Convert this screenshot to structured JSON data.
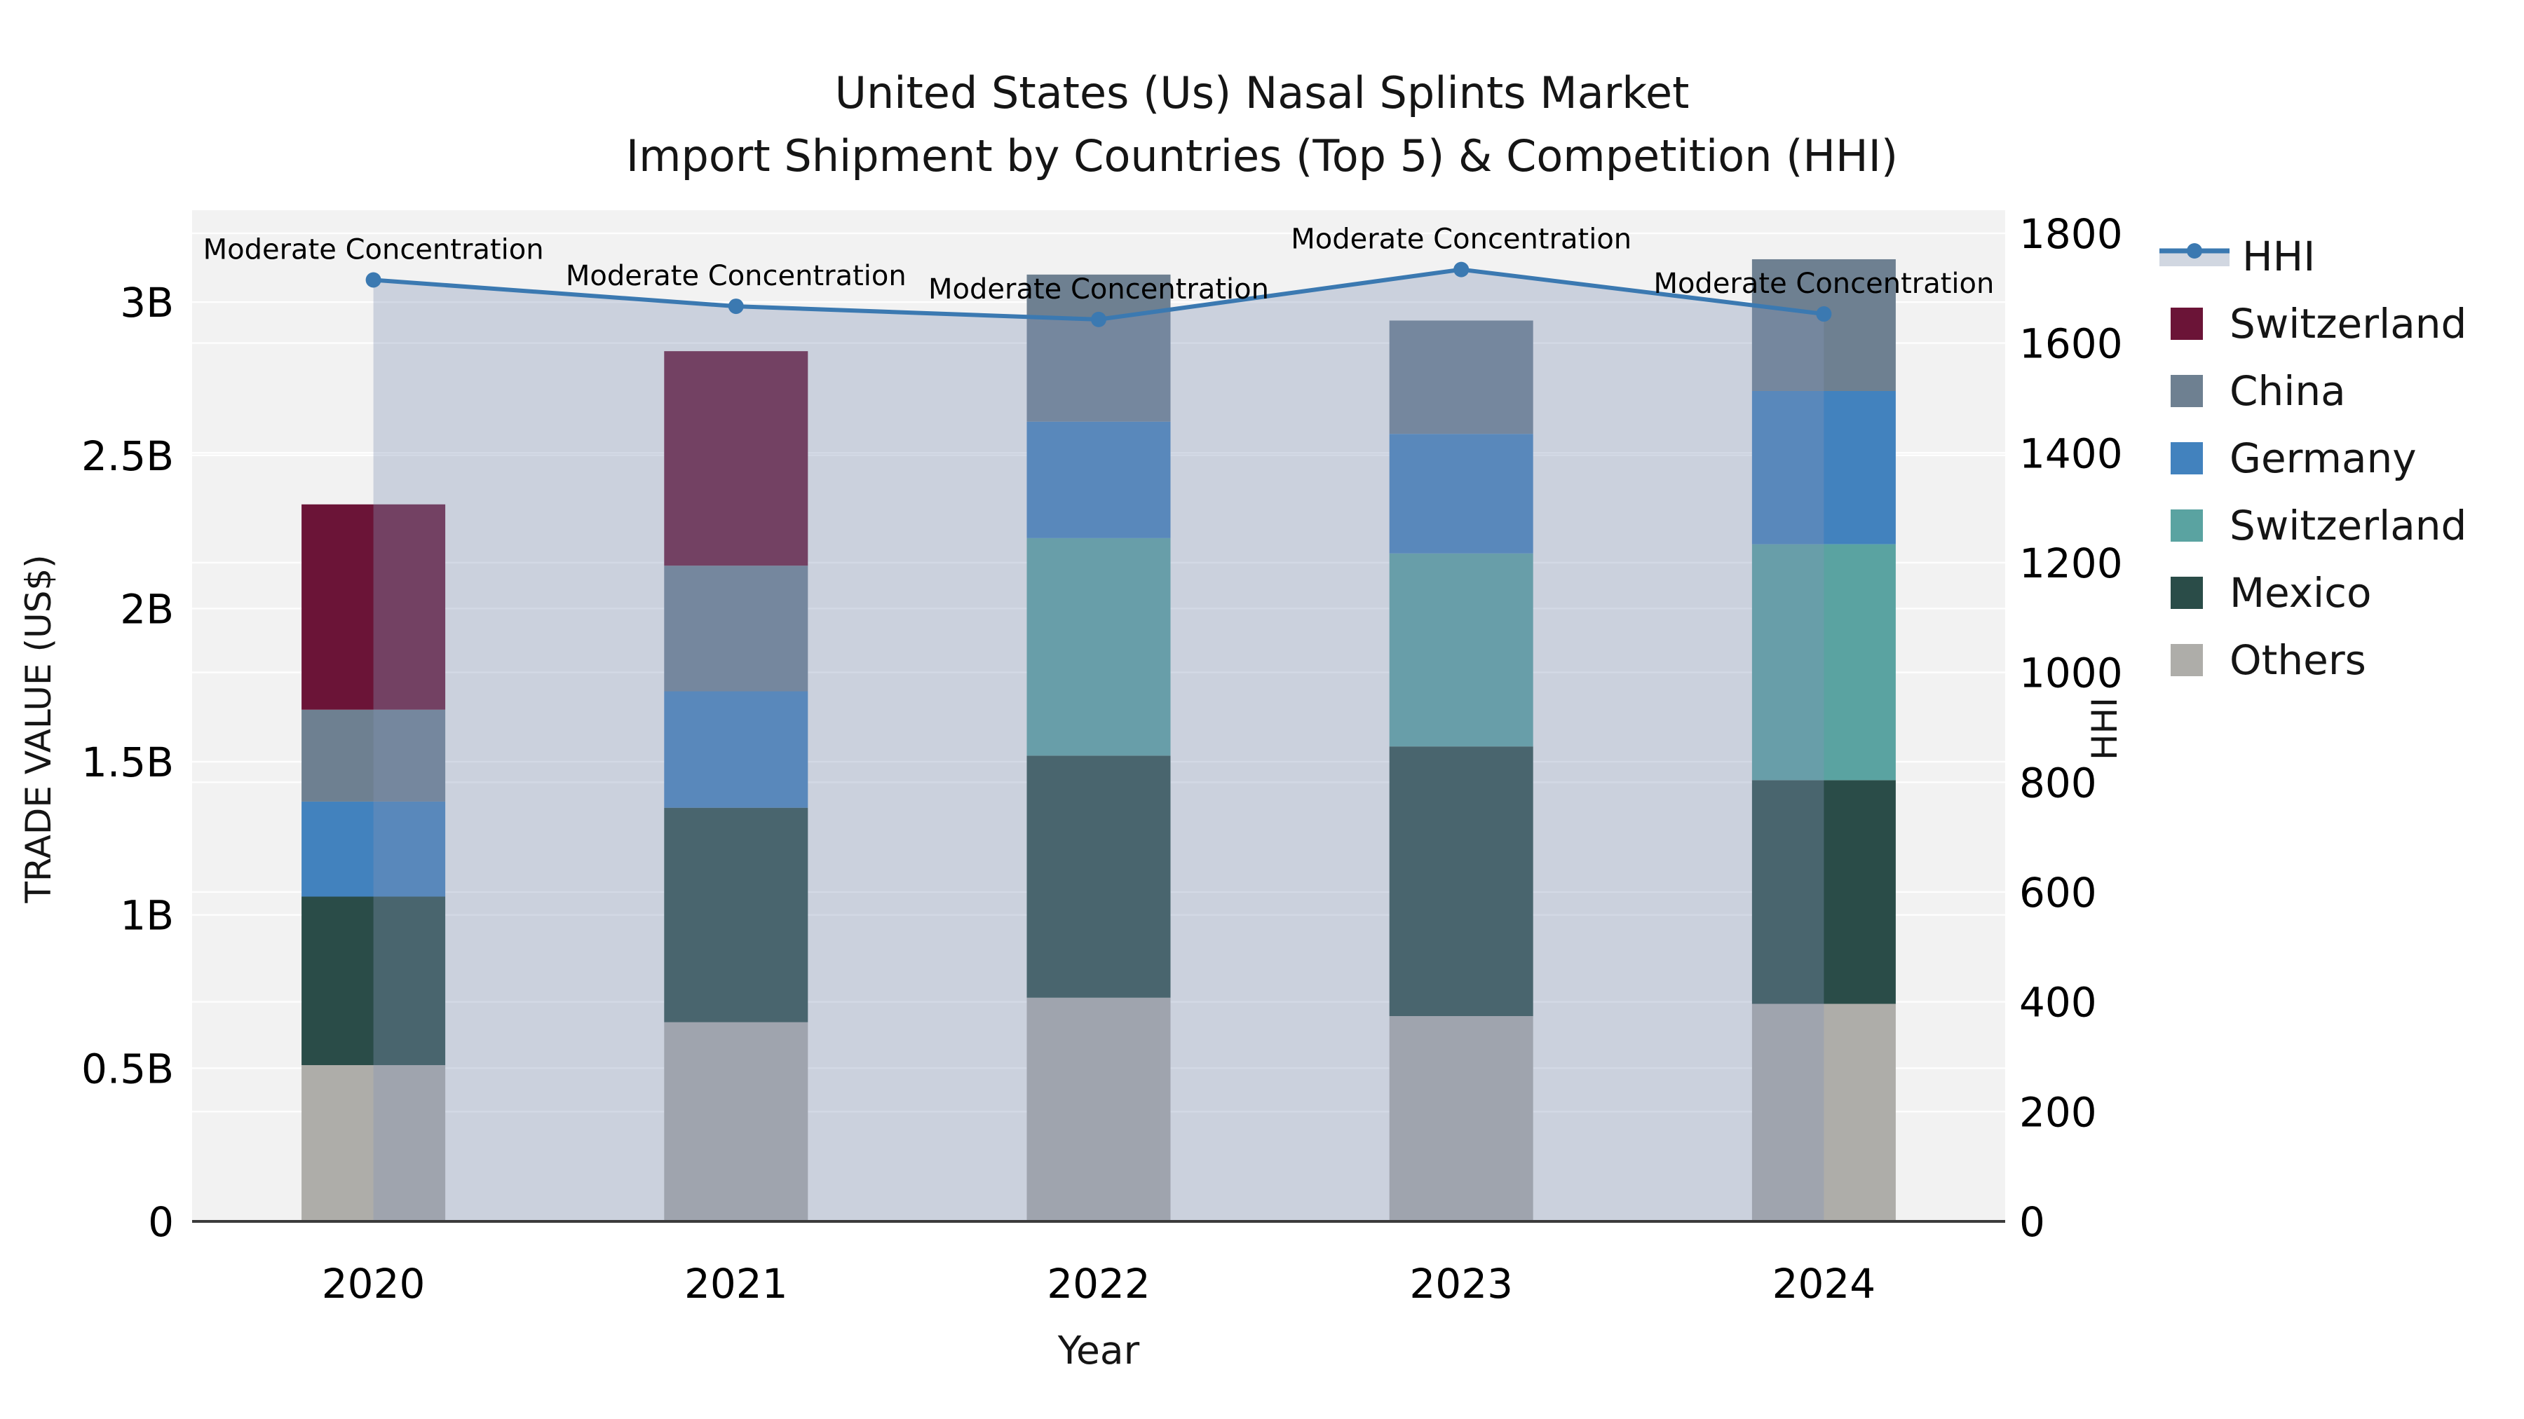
{
  "title": {
    "line1": "United States (Us) Nasal Splints Market",
    "line2": "Import Shipment by Countries (Top 5) & Competition (HHI)"
  },
  "axes": {
    "x": {
      "label": "Year",
      "categories": [
        "2020",
        "2021",
        "2022",
        "2023",
        "2024"
      ]
    },
    "y_left": {
      "label": "TRADE VALUE (US$)"
    },
    "y_right": {
      "label": "HHI"
    }
  },
  "legend": {
    "items": [
      {
        "label": "HHI",
        "type": "line",
        "color": "#3b79b1"
      },
      {
        "label": "Switzerland",
        "type": "swatch",
        "color": "#6b1437"
      },
      {
        "label": "China",
        "type": "swatch",
        "color": "#6e8091"
      },
      {
        "label": "Germany",
        "type": "swatch",
        "color": "#4282be"
      },
      {
        "label": "Switzerland",
        "type": "swatch",
        "color": "#5aa3a1"
      },
      {
        "label": "Mexico",
        "type": "swatch",
        "color": "#2a4c48"
      },
      {
        "label": "Others",
        "type": "swatch",
        "color": "#aeada9"
      }
    ]
  },
  "colors": {
    "plot_bg": "#f2f2f2",
    "gridline": "#ffffff",
    "axis_spine": "#3b3b3b",
    "hhi_line": "#3b79b1",
    "hhi_area_fill": "rgba(132,150,182,0.35)",
    "annotation_text": "#000000"
  },
  "chart_data": {
    "type": "bar",
    "subtype": "stacked-bars-with-hhi-line",
    "title": "United States (Us) Nasal Splints Market\nImport Shipment by Countries (Top 5) & Competition (HHI)",
    "xlabel": "Year",
    "ylabel_left": "TRADE VALUE (US$)",
    "ylabel_right": "HHI",
    "categories": [
      "2020",
      "2021",
      "2022",
      "2023",
      "2024"
    ],
    "bar_unit": "billions US$",
    "bar_series": [
      {
        "name": "Others",
        "color": "#aeada9",
        "values": [
          0.51,
          0.65,
          0.73,
          0.67,
          0.71
        ]
      },
      {
        "name": "Mexico",
        "color": "#2a4c48",
        "values": [
          0.55,
          0.7,
          0.79,
          0.88,
          0.73
        ]
      },
      {
        "name": "Switzerland",
        "color": "#5aa3a1",
        "values": [
          0.0,
          0.0,
          0.71,
          0.63,
          0.77
        ]
      },
      {
        "name": "Germany",
        "color": "#4282be",
        "values": [
          0.31,
          0.38,
          0.38,
          0.39,
          0.5
        ]
      },
      {
        "name": "China",
        "color": "#6e8091",
        "values": [
          0.3,
          0.41,
          0.48,
          0.37,
          0.43
        ]
      },
      {
        "name": "Switzerland",
        "color": "#6b1437",
        "values": [
          0.67,
          0.7,
          0.0,
          0.0,
          0.0
        ]
      }
    ],
    "line_series": {
      "name": "HHI",
      "color": "#3b79b1",
      "area_fill": "rgba(132,150,182,0.35)",
      "values": [
        1715,
        1667,
        1643,
        1734,
        1653
      ]
    },
    "point_annotations": [
      "Moderate Concentration",
      "Moderate Concentration",
      "Moderate Concentration",
      "Moderate Concentration",
      "Moderate Concentration"
    ],
    "ylim_left": [
      0,
      3.3
    ],
    "ylim_right": [
      0,
      1842
    ],
    "yticks_left": {
      "values": [
        0,
        0.5,
        1,
        1.5,
        2,
        2.5,
        3
      ],
      "labels": [
        "0",
        "0.5B",
        "1B",
        "1.5B",
        "2B",
        "2.5B",
        "3B"
      ]
    },
    "yticks_right": {
      "values": [
        0,
        200,
        400,
        600,
        800,
        1000,
        1200,
        1400,
        1600,
        1800
      ],
      "labels": [
        "0",
        "200",
        "400",
        "600",
        "800",
        "1000",
        "1200",
        "1400",
        "1600",
        "1800"
      ]
    },
    "grid": true,
    "legend_position": "right"
  }
}
